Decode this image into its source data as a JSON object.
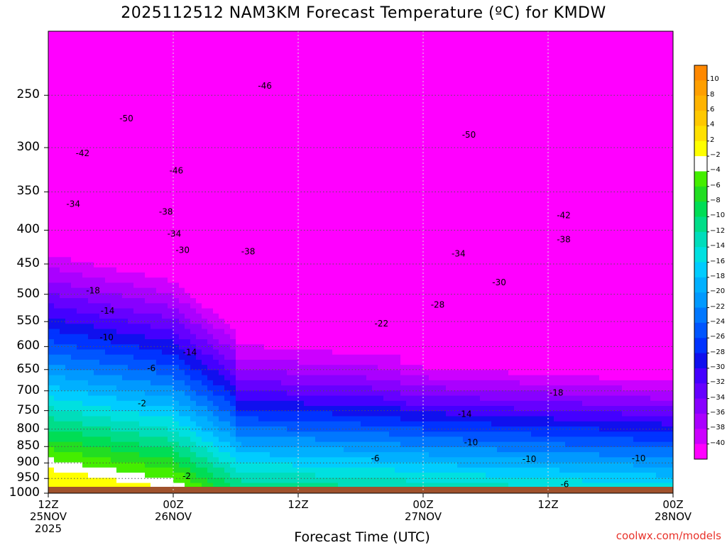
{
  "header": {
    "title": "2025112512 NAM3KM Forecast Temperature (ºC) for KMDW"
  },
  "footer": {
    "xlabel": "Forecast Time (UTC)",
    "credit": "coolwx.com/models"
  },
  "chart_data": {
    "type": "heatmap",
    "title": "2025112512 NAM3KM Forecast Temperature (ºC) for KMDW",
    "xlabel": "Forecast Time (UTC)",
    "ylabel": "",
    "y_scale": "pressure (hPa), inverted",
    "yticks": [
      "250",
      "300",
      "350",
      "400",
      "450",
      "500",
      "550",
      "600",
      "650",
      "700",
      "750",
      "800",
      "850",
      "900",
      "950",
      "1000"
    ],
    "xticks": [
      {
        "lines": [
          "12Z",
          "25NOV",
          "2025"
        ]
      },
      {
        "lines": [
          "00Z",
          "26NOV"
        ]
      },
      {
        "lines": [
          "12Z"
        ]
      },
      {
        "lines": [
          "00Z",
          "27NOV"
        ]
      },
      {
        "lines": [
          "12Z"
        ]
      },
      {
        "lines": [
          "00Z",
          "28NOV"
        ]
      }
    ],
    "xrange_hours": [
      0,
      60
    ],
    "yrange_hPa": [
      200,
      1000
    ],
    "grid": true,
    "colorbar": {
      "placement": "right",
      "levels": [
        10,
        8,
        6,
        4,
        2,
        -2,
        -4,
        -6,
        -8,
        -10,
        -12,
        -14,
        -16,
        -18,
        -20,
        -22,
        -24,
        -26,
        -28,
        -30,
        -32,
        -34,
        -36,
        -38,
        -40
      ],
      "colors": [
        "#ff8800",
        "#ff9f00",
        "#ffb300",
        "#ffc800",
        "#ffe000",
        "#ffff00",
        "#ffffff",
        "#44ee00",
        "#22dd22",
        "#00dd55",
        "#00dd88",
        "#00ddbb",
        "#00e0e0",
        "#00ccff",
        "#00b0ff",
        "#0099ff",
        "#0077ff",
        "#0055ff",
        "#0033ff",
        "#1010ee",
        "#4400ff",
        "#6600ff",
        "#8800ff",
        "#aa00ff",
        "#cc00ff",
        "#ff00ff"
      ]
    },
    "surface_color": "#a0522d",
    "contour_labels": [
      {
        "text": "-46",
        "h": 20.8,
        "p": 242
      },
      {
        "text": "-50",
        "h": 7.5,
        "p": 271
      },
      {
        "text": "-50",
        "h": 40.4,
        "p": 287
      },
      {
        "text": "-42",
        "h": 3.3,
        "p": 306
      },
      {
        "text": "-46",
        "h": 12.3,
        "p": 325
      },
      {
        "text": "-34",
        "h": 2.4,
        "p": 365
      },
      {
        "text": "-38",
        "h": 11.3,
        "p": 375
      },
      {
        "text": "-42",
        "h": 49.5,
        "p": 380
      },
      {
        "text": "-34",
        "h": 12.1,
        "p": 405
      },
      {
        "text": "-38",
        "h": 49.5,
        "p": 413
      },
      {
        "text": "-30",
        "h": 12.9,
        "p": 429
      },
      {
        "text": "-38",
        "h": 19.2,
        "p": 431
      },
      {
        "text": "-34",
        "h": 39.4,
        "p": 434
      },
      {
        "text": "-30",
        "h": 43.3,
        "p": 480
      },
      {
        "text": "-18",
        "h": 4.3,
        "p": 494
      },
      {
        "text": "-28",
        "h": 37.4,
        "p": 519
      },
      {
        "text": "-14",
        "h": 5.7,
        "p": 530
      },
      {
        "text": "-22",
        "h": 32.0,
        "p": 554
      },
      {
        "text": "-10",
        "h": 5.6,
        "p": 581
      },
      {
        "text": "-14",
        "h": 13.6,
        "p": 612
      },
      {
        "text": "-6",
        "h": 9.9,
        "p": 647
      },
      {
        "text": "-18",
        "h": 48.8,
        "p": 705
      },
      {
        "text": "-2",
        "h": 9.0,
        "p": 731
      },
      {
        "text": "-14",
        "h": 40.0,
        "p": 759
      },
      {
        "text": "-10",
        "h": 40.6,
        "p": 838
      },
      {
        "text": "-6",
        "h": 31.4,
        "p": 886
      },
      {
        "text": "-10",
        "h": 46.2,
        "p": 888
      },
      {
        "text": "-10",
        "h": 56.7,
        "p": 886
      },
      {
        "text": "-2",
        "h": 13.3,
        "p": 942
      },
      {
        "text": "-6",
        "h": 49.6,
        "p": 969
      }
    ]
  }
}
